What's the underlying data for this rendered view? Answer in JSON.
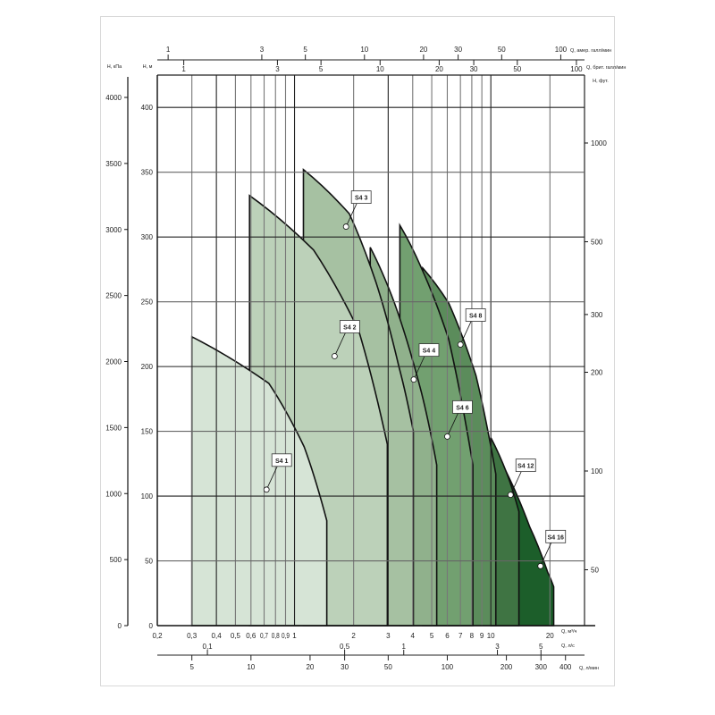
{
  "chart_data": {
    "type": "area",
    "x_scale": "log",
    "xlim": [
      0.2,
      30
    ],
    "ylim": [
      0,
      425
    ],
    "grid": true,
    "axes": {
      "x_main": {
        "label": "Q, м³/ч",
        "ticks": [
          0.2,
          0.3,
          0.4,
          0.5,
          0.6,
          0.7,
          0.8,
          0.9,
          1,
          2,
          3,
          4,
          5,
          6,
          7,
          8,
          9,
          10,
          20
        ],
        "tick_labels": [
          "0,2",
          "0,3",
          "0,4",
          "0,5",
          "0,6",
          "0,7",
          "0,8",
          "0,9",
          "1",
          "2",
          "3",
          "4",
          "5",
          "6",
          "7",
          "8",
          "9",
          "10",
          "20"
        ]
      },
      "x_ls": {
        "label": "Q, л/с",
        "ticks": [
          0.1,
          0.5,
          1,
          3,
          5
        ],
        "tick_labels": [
          "0,1",
          "0,5",
          "1",
          "3",
          "5"
        ]
      },
      "x_lmin": {
        "label": "Q, л/мин",
        "ticks": [
          5,
          10,
          20,
          30,
          50,
          100,
          200,
          300,
          400
        ],
        "tick_labels": [
          "5",
          "10",
          "20",
          "30",
          "50",
          "100",
          "200",
          "300",
          "400"
        ]
      },
      "x_usgpm": {
        "label": "Q, амер. галл/мин",
        "ticks": [
          1,
          3,
          5,
          10,
          20,
          30,
          50,
          100
        ],
        "tick_labels": [
          "1",
          "3",
          "5",
          "10",
          "20",
          "30",
          "50",
          "100"
        ]
      },
      "x_ukgpm": {
        "label": "Q, брит. галл/мин",
        "ticks": [
          1,
          3,
          5,
          10,
          20,
          30,
          50,
          100
        ],
        "tick_labels": [
          "1",
          "3",
          "5",
          "10",
          "20",
          "30",
          "50",
          "100"
        ]
      },
      "y_m": {
        "label": "H, м",
        "ticks": [
          0,
          50,
          100,
          150,
          200,
          250,
          300,
          350,
          400
        ],
        "tick_labels": [
          "0",
          "50",
          "100",
          "150",
          "200",
          "250",
          "300",
          "350",
          "400"
        ]
      },
      "y_kpa": {
        "label": "H, кПа",
        "ticks": [
          0,
          500,
          1000,
          1500,
          2000,
          2500,
          3000,
          3500,
          4000
        ],
        "tick_labels": [
          "0",
          "500",
          "1000",
          "1500",
          "2000",
          "2500",
          "3000",
          "3500",
          "4000"
        ]
      },
      "y_ft": {
        "label": "H, фут.",
        "scale": "log",
        "ticks": [
          50,
          100,
          200,
          300,
          500,
          1000
        ],
        "tick_labels": [
          "50",
          "100",
          "200",
          "300",
          "500",
          "1000"
        ]
      }
    },
    "series": [
      {
        "name": "S4 1",
        "color": "#d6e4d6",
        "points": [
          [
            0.3,
            223
          ],
          [
            0.74,
            187
          ],
          [
            1.12,
            138
          ],
          [
            1.46,
            81
          ]
        ],
        "label_point": [
          0.72,
          105
        ]
      },
      {
        "name": "S4 2",
        "color": "#bcd1b9",
        "points": [
          [
            0.59,
            332
          ],
          [
            1.25,
            290
          ],
          [
            2.12,
            228
          ],
          [
            2.97,
            140
          ]
        ],
        "label_point": [
          1.6,
          208
        ]
      },
      {
        "name": "S4 3",
        "color": "#a6c1a2",
        "points": [
          [
            1.11,
            352
          ],
          [
            1.9,
            318
          ],
          [
            2.6,
            265
          ],
          [
            3.4,
            200
          ],
          [
            4.03,
            150
          ]
        ],
        "label_point": [
          1.83,
          308
        ]
      },
      {
        "name": "S4 4",
        "color": "#90b18c",
        "points": [
          [
            2.43,
            292
          ],
          [
            3.23,
            249
          ],
          [
            4.43,
            180
          ],
          [
            5.3,
            124
          ]
        ],
        "label_point": [
          4.05,
          190
        ]
      },
      {
        "name": "S4 6",
        "color": "#72a070",
        "points": [
          [
            3.44,
            309
          ],
          [
            4.43,
            276
          ],
          [
            6.1,
            221
          ],
          [
            8.1,
            124
          ]
        ],
        "label_point": [
          6.0,
          146
        ]
      },
      {
        "name": "S4 8",
        "color": "#5b8c5b",
        "points": [
          [
            4.5,
            276
          ],
          [
            6.1,
            249
          ],
          [
            8.4,
            193
          ],
          [
            10.6,
            117
          ]
        ],
        "label_point": [
          7.0,
          217
        ]
      },
      {
        "name": "S4 12",
        "color": "#3f7443",
        "points": [
          [
            10.0,
            145
          ],
          [
            12.1,
            117
          ],
          [
            13.9,
            88
          ]
        ],
        "label_point": [
          12.6,
          101
        ]
      },
      {
        "name": "S4 16",
        "color": "#1c5e2a",
        "points": [
          [
            10.0,
            145
          ],
          [
            11.5,
            124
          ],
          [
            15.8,
            76
          ],
          [
            19.5,
            41
          ],
          [
            20.9,
            30
          ]
        ],
        "label_point": [
          17.9,
          46
        ]
      }
    ]
  }
}
